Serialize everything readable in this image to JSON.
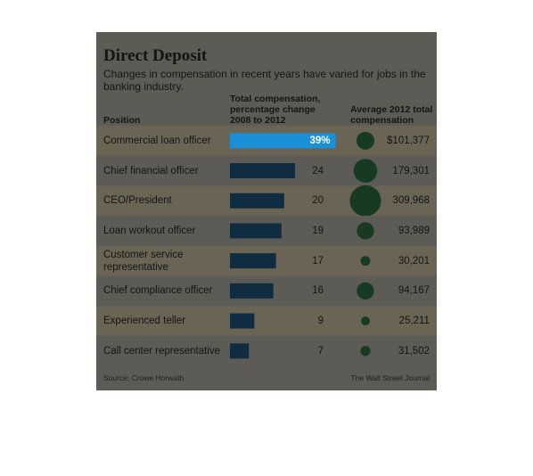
{
  "chart_data": {
    "type": "bar",
    "title": "Direct Deposit",
    "subtitle": "Changes in compensation in recent years have varied for jobs in the banking industry.",
    "category_header": "Position",
    "categories": [
      "Commercial loan officer",
      "Chief financial officer",
      "CEO/President",
      "Loan workout officer",
      "Customer service representative",
      "Chief compliance officer",
      "Experienced teller",
      "Call center representative"
    ],
    "series": [
      {
        "name": "Total compensation, percentage change 2008 to 2012",
        "values": [
          39,
          24,
          20,
          19,
          17,
          16,
          9,
          7
        ],
        "value_labels": [
          "39%",
          "24",
          "20",
          "19",
          "17",
          "16",
          "9",
          "7"
        ],
        "colors": [
          "#1b8fd8",
          "#0f2c40",
          "#0f2c40",
          "#0f2c40",
          "#0f2c40",
          "#0f2c40",
          "#0f2c40",
          "#0f2c40"
        ]
      },
      {
        "name": "Average 2012 total compensation",
        "values": [
          101377,
          179301,
          309968,
          93989,
          30201,
          94167,
          25211,
          31502
        ],
        "value_labels": [
          "$101,377",
          "179,301",
          "309,968",
          "93,989",
          "30,201",
          "94,167",
          "25,211",
          "31,502"
        ],
        "color": "#173a22"
      }
    ],
    "xlim": [
      0,
      40
    ],
    "source": "Source: Crowe Horwath",
    "credit": "The Wall Street Journal"
  }
}
